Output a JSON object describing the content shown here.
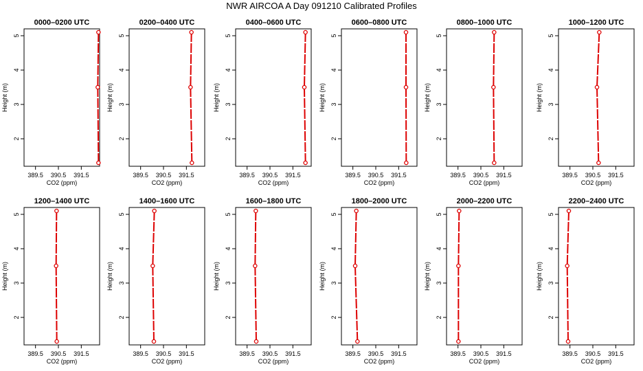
{
  "title": "NWR AIRCOA A  Day 091210  Calibrated Profiles",
  "chart_data": {
    "type": "line",
    "xlabel": "CO2 (ppm)",
    "ylabel": "Height (m)",
    "xlim": [
      389.0,
      392.3
    ],
    "ylim": [
      1.2,
      5.2
    ],
    "xticks": [
      389.5,
      390.5,
      391.5
    ],
    "xtick_labels": [
      "389.5",
      "390.5",
      "391.5"
    ],
    "yticks": [
      2,
      3,
      4,
      5
    ],
    "ytick_labels": [
      "2",
      "3",
      "4",
      "5"
    ],
    "heights": [
      5.1,
      3.5,
      1.3
    ],
    "color": "#dd0000",
    "panels": [
      {
        "title": "0000–0200 UTC",
        "co2": [
          392.25,
          392.22,
          392.25
        ]
      },
      {
        "title": "0200–0400 UTC",
        "co2": [
          391.72,
          391.68,
          391.74
        ]
      },
      {
        "title": "0400–0600 UTC",
        "co2": [
          392.05,
          392.0,
          392.05
        ]
      },
      {
        "title": "0600–0800 UTC",
        "co2": [
          391.82,
          391.82,
          391.83
        ]
      },
      {
        "title": "0800–1000 UTC",
        "co2": [
          391.08,
          391.05,
          391.08
        ]
      },
      {
        "title": "1000–1200 UTC",
        "co2": [
          390.78,
          390.68,
          390.75
        ]
      },
      {
        "title": "1200–1400 UTC",
        "co2": [
          390.42,
          390.4,
          390.43
        ]
      },
      {
        "title": "1400–1600 UTC",
        "co2": [
          390.1,
          390.03,
          390.08
        ]
      },
      {
        "title": "1600–1800 UTC",
        "co2": [
          389.88,
          389.85,
          389.9
        ]
      },
      {
        "title": "1800–2000 UTC",
        "co2": [
          389.65,
          389.6,
          389.7
        ]
      },
      {
        "title": "2000–2200 UTC",
        "co2": [
          389.55,
          389.52,
          389.52
        ]
      },
      {
        "title": "2200–2400 UTC",
        "co2": [
          389.45,
          389.38,
          389.42
        ]
      }
    ]
  }
}
